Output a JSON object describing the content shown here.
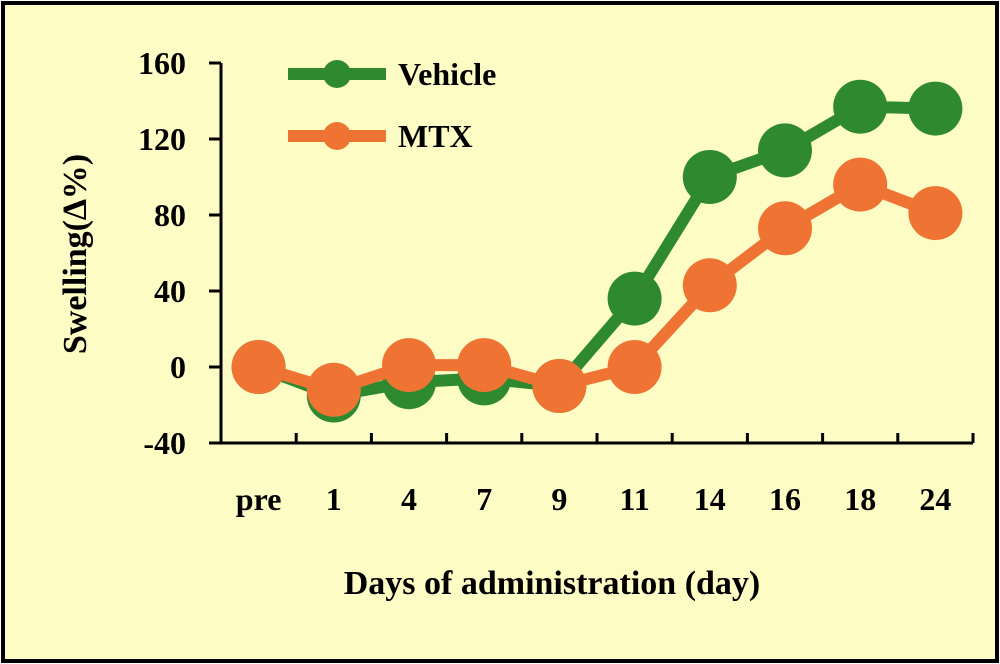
{
  "colors": {
    "background": "#fcfcc4",
    "border": "#000000",
    "vehicle": "#2f8a2f",
    "mtx": "#ef7434"
  },
  "chart_data": {
    "type": "line",
    "title": "",
    "xlabel": "Days of administration (day)",
    "ylabel": "Swelling(∆%)",
    "categories": [
      "pre",
      "1",
      "4",
      "7",
      "9",
      "11",
      "14",
      "16",
      "18",
      "24"
    ],
    "ylim": [
      -40,
      160
    ],
    "yticks": [
      -40,
      0,
      40,
      80,
      120,
      160
    ],
    "grid": false,
    "legend_position": "top-left",
    "series": [
      {
        "name": "Vehicle",
        "color": "#2f8a2f",
        "values": [
          0,
          -15,
          -8,
          -6,
          -10,
          36,
          100,
          114,
          137,
          136
        ]
      },
      {
        "name": "MTX",
        "color": "#ef7434",
        "values": [
          0,
          -12,
          1,
          1,
          -10,
          0,
          43,
          73,
          96,
          81
        ]
      }
    ]
  }
}
